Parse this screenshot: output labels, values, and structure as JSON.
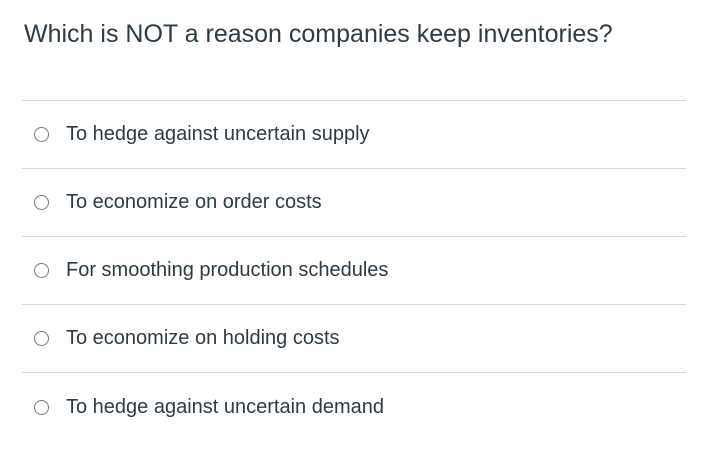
{
  "question": "Which is NOT a reason companies keep inventories?",
  "options": [
    "To hedge against uncertain supply",
    "To economize on order costs",
    "For smoothing production schedules",
    "To economize on holding costs",
    "To hedge against uncertain demand"
  ]
}
